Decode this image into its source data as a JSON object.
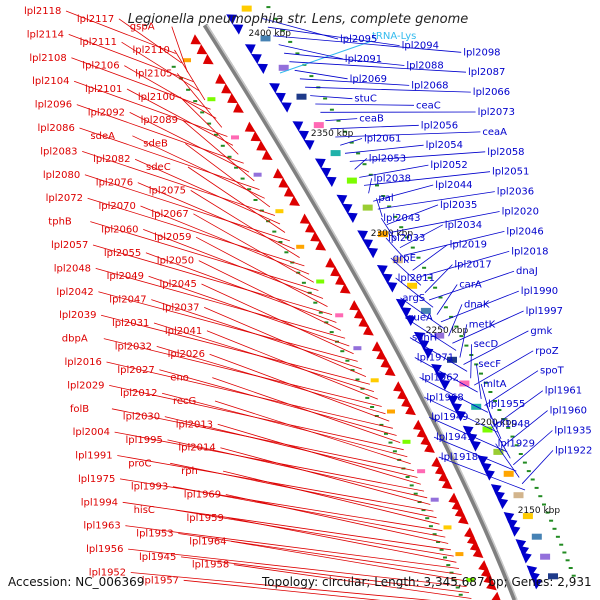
{
  "title": "Legionella pneumophila str. Lens, complete genome",
  "footer": {
    "accession": "Accession: NC_006369",
    "summary": "Topology: circular; Length: 3,345,687 bp; Genes: 2,931"
  },
  "ticks": [
    "2400 kbp",
    "2350 kbp",
    "2300 kbp",
    "2250 kbp",
    "2200 kbp",
    "2150 kbp"
  ],
  "colors": {
    "forward": "#dd0000",
    "reverse": "#0000cc",
    "trna": "#33bbee",
    "backbone": "#808080",
    "tick": "#228b22"
  },
  "trna_label": "tRNA-Lys",
  "left_labels": [
    "lpl2118",
    "lpl2117",
    "gspA",
    "lpl2114",
    "lpl2111",
    "lpl2110",
    "lpl2108",
    "lpl2106",
    "lpl2105",
    "lpl2104",
    "lpl2101",
    "lpl2100",
    "lpl2096",
    "lpl2092",
    "lpl2089",
    "lpl2086",
    "sdeA",
    "sdeB",
    "lpl2083",
    "lpl2082",
    "sdeC",
    "lpl2080",
    "lpl2076",
    "lpl2075",
    "lpl2072",
    "lpl2070",
    "lpl2067",
    "tphB",
    "lpl2060",
    "lpl2059",
    "lpl2057",
    "lpl2055",
    "lpl2050",
    "lpl2048",
    "lpl2049",
    "lpl2045",
    "lpl2042",
    "lpl2047",
    "lpl2037",
    "lpl2039",
    "lpl2031",
    "lpl2041",
    "dbpA",
    "lpl2032",
    "lpl2026",
    "lpl2016",
    "lpl2027",
    "eno",
    "lpl2029",
    "lpl2012",
    "recG",
    "folB",
    "lpl2030",
    "lpl2013",
    "lpl2004",
    "lpl1995",
    "lpl2014",
    "lpl1991",
    "proC",
    "rph",
    "lpl1975",
    "lpl1993",
    "lpl1969",
    "lpl1994",
    "hisC",
    "lpl1959",
    "lpl1963",
    "lpl1953",
    "lpl1964",
    "lpl1956",
    "lpl1945",
    "lpl1958",
    "lpl1952",
    "lpl1957"
  ],
  "right_labels": [
    "lpl2095",
    "lpl2094",
    "lpl2098",
    "lpl2091",
    "lpl2088",
    "lpl2087",
    "lpl2069",
    "lpl2068",
    "lpl2066",
    "stuC",
    "ceaC",
    "lpl2073",
    "ceaB",
    "lpl2056",
    "ceaA",
    "lpl2061",
    "lpl2054",
    "lpl2058",
    "lpl2053",
    "lpl2052",
    "lpl2051",
    "lpl2038",
    "lpl2044",
    "lpl2036",
    "pal",
    "lpl2035",
    "lpl2020",
    "lpl2043",
    "lpl2034",
    "lpl2046",
    "lpl2033",
    "lpl2019",
    "lpl2018",
    "grpE",
    "lpl2017",
    "dnaJ",
    "lpl2011",
    "carA",
    "lpl1990",
    "argS",
    "dnaK",
    "lpl1997",
    "queA",
    "metK",
    "gmk",
    "sahH",
    "secD",
    "rpoZ",
    "lpl1971",
    "secF",
    "spoT",
    "lpl1962",
    "mltA",
    "lpl1961",
    "lpl1968",
    "lpl1955",
    "lpl1960",
    "lpl1949",
    "lpl1948",
    "lpl1935",
    "lpl1941",
    "lpl1929",
    "lpl1922",
    "lpl1918"
  ]
}
